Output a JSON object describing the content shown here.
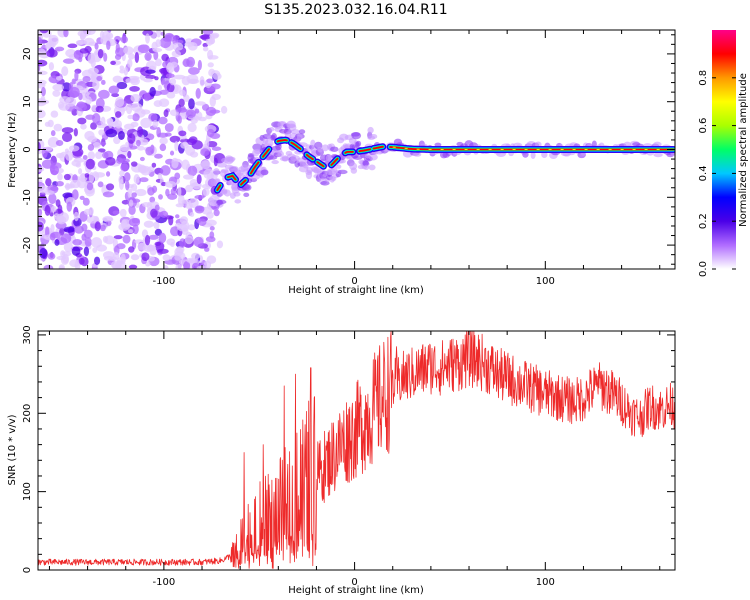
{
  "title": "S135.2023.032.16.04.R11",
  "chart_data": [
    {
      "type": "heatmap",
      "title": "S135.2023.032.16.04.R11",
      "xlabel": "Height of straight line (km)",
      "ylabel": "Frequency (Hz)",
      "xlim": [
        -166,
        168
      ],
      "ylim": [
        -25,
        25
      ],
      "xticks": [
        -100,
        0,
        100
      ],
      "yticks": [
        -20,
        -10,
        0,
        10,
        20
      ],
      "noise_region_x": [
        -166,
        -72
      ],
      "ridge": {
        "x": [
          -72,
          -68,
          -64,
          -60,
          -56,
          -52,
          -48,
          -44,
          -40,
          -36,
          -32,
          -28,
          -24,
          -20,
          -16,
          -12,
          -8,
          -4,
          0,
          5,
          10,
          15,
          20,
          30,
          40,
          60,
          80,
          100,
          130,
          168
        ],
        "y": [
          -8.5,
          -6,
          -5.5,
          -7.5,
          -6,
          -3.5,
          -1.5,
          0.5,
          1.8,
          2,
          1.2,
          0,
          -1.5,
          -2.5,
          -3.6,
          -3.2,
          -1.5,
          -0.5,
          -0.5,
          -0.2,
          0.2,
          0.6,
          0.5,
          0.1,
          0,
          0,
          0,
          0,
          0,
          0
        ]
      },
      "colorbar": {
        "label": "Normalized spectral amplitude",
        "range": [
          0,
          1
        ],
        "ticks": [
          "0.0",
          "0.2",
          "0.4",
          "0.6",
          "0.8"
        ],
        "colors": [
          "#ffffff",
          "#b06cff",
          "#4a00e8",
          "#0000ff",
          "#00c8ff",
          "#00ff66",
          "#aaff00",
          "#ffff00",
          "#ff9900",
          "#ff0000",
          "#ff0088"
        ]
      }
    },
    {
      "type": "line",
      "xlabel": "Height of straight line (km)",
      "ylabel": "SNR (10 * v/v)",
      "xlim": [
        -166,
        168
      ],
      "ylim": [
        0,
        305
      ],
      "xticks": [
        -100,
        0,
        100
      ],
      "yticks": [
        0,
        100,
        200,
        300
      ],
      "line_color": "#ee2a2a",
      "series": [
        {
          "name": "SNR",
          "x": [
            -166,
            -140,
            -110,
            -80,
            -70,
            -65,
            -60,
            -55,
            -50,
            -45,
            -40,
            -35,
            -30,
            -25,
            -20,
            -15,
            -10,
            -5,
            0,
            5,
            10,
            15,
            20,
            25,
            30,
            35,
            40,
            45,
            50,
            55,
            60,
            65,
            70,
            75,
            80,
            85,
            90,
            95,
            100,
            105,
            110,
            115,
            120,
            125,
            130,
            135,
            140,
            145,
            150,
            155,
            160,
            165,
            168
          ],
          "y": [
            10,
            10,
            10,
            10,
            12,
            18,
            28,
            45,
            55,
            60,
            70,
            80,
            95,
            110,
            120,
            135,
            150,
            165,
            175,
            190,
            205,
            220,
            235,
            245,
            250,
            255,
            260,
            258,
            262,
            265,
            270,
            268,
            260,
            250,
            245,
            240,
            235,
            230,
            225,
            222,
            218,
            215,
            220,
            230,
            235,
            225,
            215,
            200,
            195,
            210,
            205,
            210,
            210
          ]
        }
      ],
      "spikes": [
        {
          "x": -58,
          "y": 150
        },
        {
          "x": -48,
          "y": 160
        },
        {
          "x": -37,
          "y": 235
        },
        {
          "x": -31,
          "y": 250
        },
        {
          "x": -23,
          "y": 258
        },
        {
          "x": 22,
          "y": 285
        },
        {
          "x": 58,
          "y": 300
        },
        {
          "x": 128,
          "y": 255
        }
      ]
    }
  ]
}
